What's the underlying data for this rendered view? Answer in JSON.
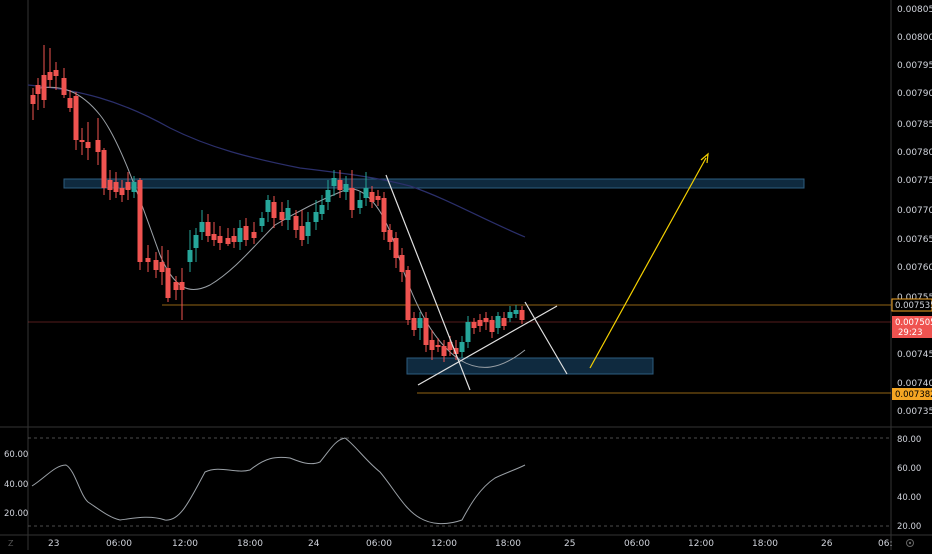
{
  "price_axis": {
    "labels": [
      "0.008050",
      "0.008000",
      "0.007950",
      "0.007900",
      "0.007850",
      "0.007800",
      "0.007750",
      "0.007700",
      "0.007650",
      "0.007600",
      "0.007550",
      "0.007450",
      "0.007400",
      "0.007350"
    ],
    "tags": {
      "top_level": "0.007535",
      "last_price": "0.007505",
      "countdown": "29:23",
      "low_level": "0.007382"
    }
  },
  "osc_axis": {
    "left_labels": [
      "60.00",
      "40.00",
      "20.00"
    ],
    "right_labels": [
      "80.00",
      "60.00",
      "40.00",
      "20.00"
    ]
  },
  "time_axis": {
    "labels": [
      "23",
      "06:00",
      "12:00",
      "18:00",
      "24",
      "06:00",
      "12:00",
      "18:00",
      "25",
      "06:00",
      "12:00",
      "18:00",
      "26",
      "06:"
    ]
  },
  "footer": {
    "tv_logo": "Z",
    "gear_icon": "gear-icon"
  },
  "colors": {
    "up": "#26a69a",
    "down": "#ef5350",
    "orange": "#f5a623",
    "zone_fill": "#0f2a3f",
    "zone_stroke": "#2d5d7f"
  }
}
